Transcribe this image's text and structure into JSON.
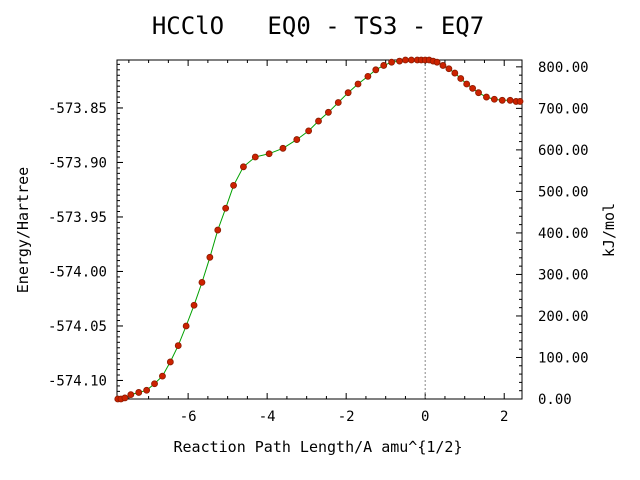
{
  "chart_data": {
    "type": "line",
    "title": "HCClO   EQ0 - TS3 - EQ7",
    "xlabel": "Reaction Path Length/A amu^{1/2}",
    "ylabel": "Energy/Hartree",
    "y2label": "kJ/mol",
    "xlim": [
      -7.8,
      2.45
    ],
    "ylim": [
      -574.117,
      -573.806
    ],
    "y2lim": [
      0,
      816.5
    ],
    "x_ticks": [
      "-6",
      "-4",
      "-2",
      "0",
      "2"
    ],
    "x_tick_values": [
      -6,
      -4,
      -2,
      0,
      2
    ],
    "y_ticks": [
      "-573.85",
      "-573.90",
      "-573.95",
      "-574.00",
      "-574.05",
      "-574.10"
    ],
    "y_tick_values": [
      -573.85,
      -573.9,
      -573.95,
      -574.0,
      -574.05,
      -574.1
    ],
    "y2_ticks": [
      "800.00",
      "700.00",
      "600.00",
      "500.00",
      "400.00",
      "300.00",
      "200.00",
      "100.00",
      "0.00"
    ],
    "y2_tick_values": [
      800,
      700,
      600,
      500,
      400,
      300,
      200,
      100,
      0
    ],
    "ts_marker_x": 0,
    "line_color": "#00a000",
    "marker_color": "#cc2200",
    "marker_edge_color": "#8b1a00",
    "series": [
      {
        "x": [
          -7.78,
          -7.7,
          -7.6,
          -7.45,
          -7.25,
          -7.05,
          -6.85,
          -6.65,
          -6.45,
          -6.25,
          -6.05,
          -5.85,
          -5.65,
          -5.45,
          -5.25,
          -5.05,
          -4.85,
          -4.6,
          -4.3,
          -3.95,
          -3.6,
          -3.25,
          -2.95,
          -2.7,
          -2.45,
          -2.2,
          -1.95,
          -1.7,
          -1.45,
          -1.25,
          -1.05,
          -0.85,
          -0.65,
          -0.5,
          -0.35,
          -0.2,
          -0.1,
          0.0,
          0.1,
          0.2,
          0.3,
          0.45,
          0.6,
          0.75,
          0.9,
          1.05,
          1.2,
          1.35,
          1.55,
          1.75,
          1.95,
          2.15,
          2.3,
          2.4
        ],
        "y": [
          -574.117,
          -574.117,
          -574.116,
          -574.113,
          -574.111,
          -574.109,
          -574.103,
          -574.096,
          -574.083,
          -574.068,
          -574.05,
          -574.031,
          -574.01,
          -573.987,
          -573.962,
          -573.942,
          -573.921,
          -573.904,
          -573.895,
          -573.892,
          -573.887,
          -573.879,
          -573.871,
          -573.862,
          -573.854,
          -573.845,
          -573.836,
          -573.828,
          -573.821,
          -573.815,
          -573.811,
          -573.808,
          -573.807,
          -573.806,
          -573.806,
          -573.806,
          -573.806,
          -573.806,
          -573.806,
          -573.807,
          -573.808,
          -573.811,
          -573.814,
          -573.818,
          -573.823,
          -573.828,
          -573.832,
          -573.836,
          -573.84,
          -573.842,
          -573.843,
          -573.843,
          -573.844,
          -573.844
        ]
      }
    ]
  }
}
